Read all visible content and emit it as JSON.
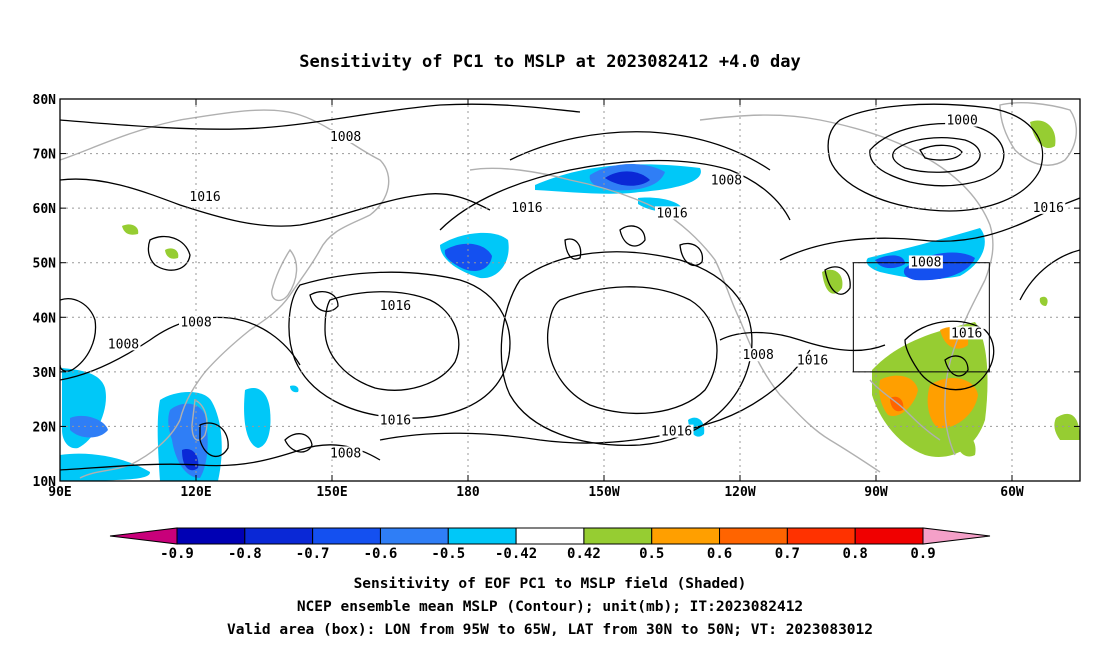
{
  "title": "Sensitivity of PC1 to MSLP at 2023082412 +4.0 day",
  "map": {
    "lon_ticks": [
      {
        "label": "90E",
        "lon": 90
      },
      {
        "label": "120E",
        "lon": 120
      },
      {
        "label": "150E",
        "lon": 150
      },
      {
        "label": "180",
        "lon": 180
      },
      {
        "label": "150W",
        "lon": 210
      },
      {
        "label": "120W",
        "lon": 240
      },
      {
        "label": "90W",
        "lon": 270
      },
      {
        "label": "60W",
        "lon": 300
      }
    ],
    "lat_ticks": [
      {
        "label": "10N",
        "lat": 10
      },
      {
        "label": "20N",
        "lat": 20
      },
      {
        "label": "30N",
        "lat": 30
      },
      {
        "label": "40N",
        "lat": 40
      },
      {
        "label": "50N",
        "lat": 50
      },
      {
        "label": "60N",
        "lat": 60
      },
      {
        "label": "70N",
        "lat": 70
      },
      {
        "label": "80N",
        "lat": 80
      }
    ],
    "lon_range": [
      90,
      315
    ],
    "lat_range": [
      10,
      80
    ],
    "grid": true,
    "valid_box": {
      "lon": [
        265,
        295
      ],
      "lat": [
        30,
        50
      ]
    },
    "contour_labels": [
      {
        "text": "1008",
        "lon": 153,
        "lat": 72.5
      },
      {
        "text": "1016",
        "lon": 122,
        "lat": 61.5
      },
      {
        "text": "1008",
        "lon": 104,
        "lat": 34.5
      },
      {
        "text": "1008",
        "lon": 120,
        "lat": 38.5
      },
      {
        "text": "1016",
        "lon": 164,
        "lat": 41.5
      },
      {
        "text": "1016",
        "lon": 164,
        "lat": 20.5
      },
      {
        "text": "1008",
        "lon": 153,
        "lat": 14.5
      },
      {
        "text": "1016",
        "lon": 193,
        "lat": 59.5
      },
      {
        "text": "1016",
        "lon": 225,
        "lat": 58.5
      },
      {
        "text": "1008",
        "lon": 237,
        "lat": 64.5
      },
      {
        "text": "1016",
        "lon": 226,
        "lat": 18.5
      },
      {
        "text": "1008",
        "lon": 244,
        "lat": 32.5
      },
      {
        "text": "1016",
        "lon": 256,
        "lat": 31.5
      },
      {
        "text": "1008",
        "lon": 281,
        "lat": 49.5
      },
      {
        "text": "1000",
        "lon": 289,
        "lat": 75.5
      },
      {
        "text": "1016",
        "lon": 290,
        "lat": 36.5
      },
      {
        "text": "1016",
        "lon": 308,
        "lat": 59.5
      }
    ]
  },
  "colorbar": {
    "levels": [
      "-0.9",
      "-0.8",
      "-0.7",
      "-0.6",
      "-0.5",
      "-0.42",
      "0.42",
      "0.5",
      "0.6",
      "0.7",
      "0.8",
      "0.9"
    ],
    "colors": [
      "#c8007a",
      "#0000b4",
      "#0a28d6",
      "#1450f0",
      "#2f7ef6",
      "#00c8f8",
      "#ffffff",
      "#96cd32",
      "#ff9f00",
      "#ff6400",
      "#ff3200",
      "#f00000",
      "#f4a0c8"
    ]
  },
  "captions": [
    "Sensitivity of EOF PC1 to MSLP field (Shaded)",
    "NCEP ensemble mean MSLP (Contour); unit(mb); IT:2023082412",
    "Valid area (box): LON from 95W to 65W, LAT from 30N to 50N; VT: 2023083012"
  ]
}
